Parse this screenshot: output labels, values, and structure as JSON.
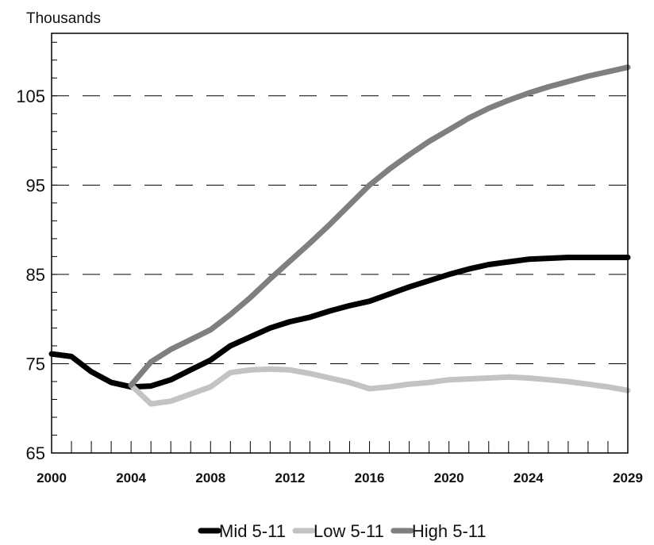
{
  "chart_data": {
    "type": "line",
    "ylabel": "Thousands",
    "xlabel": "",
    "ylim": [
      65,
      112
    ],
    "xlim": [
      2000,
      2029
    ],
    "yticks": [
      65,
      75,
      85,
      95,
      105
    ],
    "xtick_labels": [
      "2000",
      "2004",
      "2008",
      "2012",
      "2016",
      "2020",
      "2024",
      "2029"
    ],
    "grid": "horizontal dashed",
    "legend_position": "bottom",
    "series": [
      {
        "name": "Mid 5-11",
        "color": "#000000",
        "x": [
          2000,
          2001,
          2002,
          2003,
          2004,
          2005,
          2006,
          2007,
          2008,
          2009,
          2010,
          2011,
          2012,
          2013,
          2014,
          2015,
          2016,
          2017,
          2018,
          2019,
          2020,
          2021,
          2022,
          2023,
          2024,
          2025,
          2026,
          2027,
          2028,
          2029
        ],
        "values": [
          76.1,
          75.8,
          74.1,
          72.9,
          72.4,
          72.5,
          73.2,
          74.3,
          75.4,
          77.0,
          78.0,
          79.0,
          79.7,
          80.2,
          80.9,
          81.5,
          82.0,
          82.8,
          83.6,
          84.3,
          85.0,
          85.6,
          86.1,
          86.4,
          86.7,
          86.8,
          86.9,
          86.9,
          86.9,
          86.9
        ]
      },
      {
        "name": "Low 5-11",
        "color": "#c3c3c3",
        "x": [
          2004,
          2005,
          2006,
          2007,
          2008,
          2009,
          2010,
          2011,
          2012,
          2013,
          2014,
          2015,
          2016,
          2017,
          2018,
          2019,
          2020,
          2021,
          2022,
          2023,
          2024,
          2025,
          2026,
          2027,
          2028,
          2029
        ],
        "values": [
          72.6,
          70.5,
          70.8,
          71.6,
          72.4,
          74.0,
          74.3,
          74.4,
          74.3,
          73.9,
          73.4,
          72.9,
          72.2,
          72.4,
          72.7,
          72.9,
          73.2,
          73.3,
          73.4,
          73.5,
          73.4,
          73.2,
          73.0,
          72.7,
          72.4,
          72.0
        ]
      },
      {
        "name": "High 5-11",
        "color": "#7f7f7f",
        "x": [
          2004,
          2005,
          2006,
          2007,
          2008,
          2009,
          2010,
          2011,
          2012,
          2013,
          2014,
          2015,
          2016,
          2017,
          2018,
          2019,
          2020,
          2021,
          2022,
          2023,
          2024,
          2025,
          2026,
          2027,
          2028,
          2029
        ],
        "values": [
          72.6,
          75.2,
          76.6,
          77.7,
          78.8,
          80.5,
          82.4,
          84.5,
          86.5,
          88.5,
          90.6,
          92.8,
          95.0,
          96.8,
          98.4,
          99.9,
          101.2,
          102.5,
          103.6,
          104.5,
          105.3,
          106.0,
          106.6,
          107.2,
          107.7,
          108.2
        ]
      }
    ]
  }
}
